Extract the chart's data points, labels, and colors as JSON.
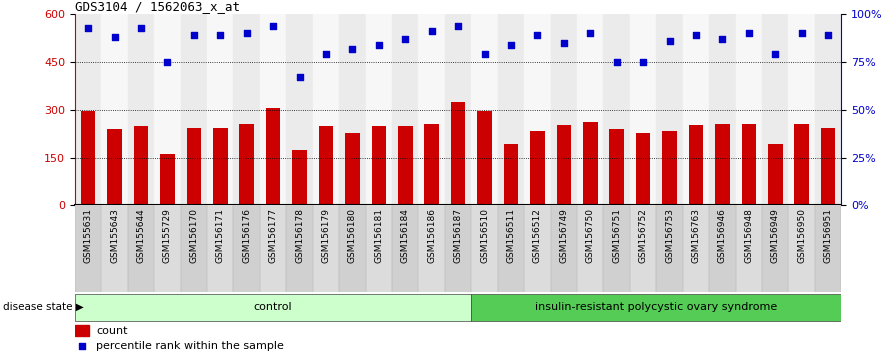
{
  "title": "GDS3104 / 1562063_x_at",
  "samples": [
    "GSM155631",
    "GSM155643",
    "GSM155644",
    "GSM155729",
    "GSM156170",
    "GSM156171",
    "GSM156176",
    "GSM156177",
    "GSM156178",
    "GSM156179",
    "GSM156180",
    "GSM156181",
    "GSM156184",
    "GSM156186",
    "GSM156187",
    "GSM156510",
    "GSM156511",
    "GSM156512",
    "GSM156749",
    "GSM156750",
    "GSM156751",
    "GSM156752",
    "GSM156753",
    "GSM156763",
    "GSM156946",
    "GSM156948",
    "GSM156949",
    "GSM156950",
    "GSM156951"
  ],
  "bar_values": [
    295,
    238,
    248,
    162,
    244,
    242,
    254,
    305,
    174,
    248,
    228,
    248,
    248,
    254,
    325,
    295,
    194,
    232,
    252,
    260,
    238,
    228,
    232,
    252,
    254,
    254,
    194,
    254,
    244
  ],
  "percentile_values": [
    93,
    88,
    93,
    75,
    89,
    89,
    90,
    94,
    67,
    79,
    82,
    84,
    87,
    91,
    94,
    79,
    84,
    89,
    85,
    90,
    75,
    75,
    86,
    89,
    87,
    90,
    79,
    90,
    89
  ],
  "n_control": 15,
  "group1_label": "control",
  "group2_label": "insulin-resistant polycystic ovary syndrome",
  "group1_color": "#ccffcc",
  "group2_color": "#55cc55",
  "bar_color": "#cc0000",
  "dot_color": "#0000cc",
  "ylim_left": [
    0,
    600
  ],
  "ylim_right": [
    0,
    100
  ],
  "yticks_left": [
    0,
    150,
    300,
    450,
    600
  ],
  "yticks_right": [
    0,
    25,
    50,
    75,
    100
  ],
  "ytick_labels_right": [
    "0%",
    "25%",
    "50%",
    "75%",
    "100%"
  ],
  "grid_values": [
    150,
    300,
    450
  ],
  "bar_width": 0.55,
  "plot_bg": "#ffffff",
  "tick_area_bg": "#d8d8d8",
  "legend_count_label": "count",
  "legend_pct_label": "percentile rank within the sample",
  "disease_state_label": "disease state"
}
